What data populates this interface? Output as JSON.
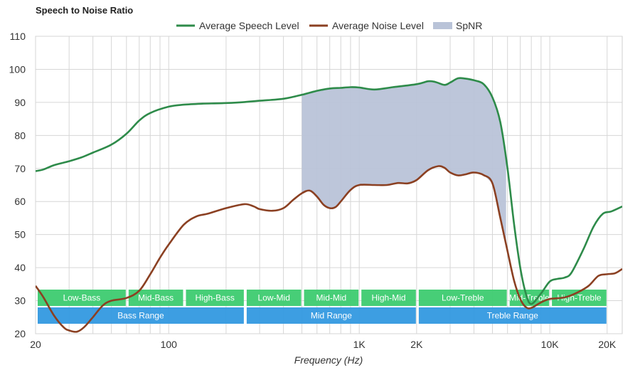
{
  "chart_data": {
    "type": "line",
    "title": "Speech to Noise Ratio",
    "xlabel": "Frequency (Hz)",
    "ylabel": "",
    "xscale": "log",
    "xlim": [
      20,
      24000
    ],
    "ylim": [
      20,
      110
    ],
    "yticks": [
      20,
      30,
      40,
      50,
      60,
      70,
      80,
      90,
      100,
      110
    ],
    "xticks": [
      {
        "value": 20,
        "label": "20"
      },
      {
        "value": 100,
        "label": "100"
      },
      {
        "value": 1000,
        "label": "1K"
      },
      {
        "value": 2000,
        "label": "2K"
      },
      {
        "value": 10000,
        "label": "10K"
      },
      {
        "value": 20000,
        "label": "20K"
      }
    ],
    "grid": true,
    "legend_position": "top-center",
    "series": [
      {
        "name": "Average Speech Level",
        "color": "#2e8b4a",
        "points": [
          [
            20,
            69.2
          ],
          [
            22,
            69.7
          ],
          [
            25,
            71
          ],
          [
            30,
            72.2
          ],
          [
            35,
            73.4
          ],
          [
            40,
            74.8
          ],
          [
            50,
            77.2
          ],
          [
            60,
            80.5
          ],
          [
            70,
            84.5
          ],
          [
            80,
            86.8
          ],
          [
            100,
            88.7
          ],
          [
            120,
            89.3
          ],
          [
            150,
            89.6
          ],
          [
            200,
            89.8
          ],
          [
            250,
            90.1
          ],
          [
            300,
            90.5
          ],
          [
            400,
            91.1
          ],
          [
            500,
            92.3
          ],
          [
            600,
            93.5
          ],
          [
            700,
            94.2
          ],
          [
            800,
            94.4
          ],
          [
            900,
            94.6
          ],
          [
            1000,
            94.5
          ],
          [
            1200,
            93.9
          ],
          [
            1500,
            94.6
          ],
          [
            2000,
            95.5
          ],
          [
            2300,
            96.4
          ],
          [
            2500,
            96.2
          ],
          [
            2800,
            95.3
          ],
          [
            3000,
            96
          ],
          [
            3300,
            97.3
          ],
          [
            3600,
            97.2
          ],
          [
            4000,
            96.7
          ],
          [
            4500,
            95.5
          ],
          [
            5000,
            91.5
          ],
          [
            5500,
            84
          ],
          [
            6000,
            70
          ],
          [
            6500,
            53
          ],
          [
            7000,
            40
          ],
          [
            7500,
            32
          ],
          [
            8000,
            29
          ],
          [
            9000,
            32.2
          ],
          [
            10000,
            35.8
          ],
          [
            11000,
            36.6
          ],
          [
            12000,
            37
          ],
          [
            13000,
            38.5
          ],
          [
            15000,
            45.5
          ],
          [
            17000,
            52.5
          ],
          [
            19000,
            56.3
          ],
          [
            21000,
            57
          ],
          [
            24000,
            58.5
          ]
        ]
      },
      {
        "name": "Average Noise Level",
        "color": "#8b4022",
        "points": [
          [
            20,
            34.5
          ],
          [
            22,
            31
          ],
          [
            25,
            25.5
          ],
          [
            28,
            22
          ],
          [
            30,
            21
          ],
          [
            33,
            20.6
          ],
          [
            36,
            22
          ],
          [
            40,
            25
          ],
          [
            45,
            28.5
          ],
          [
            50,
            30
          ],
          [
            60,
            30.8
          ],
          [
            70,
            33
          ],
          [
            80,
            38
          ],
          [
            90,
            43
          ],
          [
            100,
            47
          ],
          [
            120,
            53
          ],
          [
            140,
            55.5
          ],
          [
            160,
            56.3
          ],
          [
            200,
            58
          ],
          [
            250,
            59.2
          ],
          [
            280,
            58.5
          ],
          [
            300,
            57.7
          ],
          [
            350,
            57.2
          ],
          [
            400,
            58
          ],
          [
            450,
            60.5
          ],
          [
            500,
            62.5
          ],
          [
            550,
            63.3
          ],
          [
            600,
            61.5
          ],
          [
            650,
            59
          ],
          [
            700,
            58
          ],
          [
            750,
            58.3
          ],
          [
            800,
            60
          ],
          [
            900,
            63.5
          ],
          [
            1000,
            65
          ],
          [
            1200,
            65
          ],
          [
            1400,
            65
          ],
          [
            1600,
            65.6
          ],
          [
            1800,
            65.5
          ],
          [
            2000,
            66.5
          ],
          [
            2300,
            69.5
          ],
          [
            2600,
            70.7
          ],
          [
            2800,
            70.2
          ],
          [
            3000,
            68.8
          ],
          [
            3300,
            67.9
          ],
          [
            3600,
            68.2
          ],
          [
            4000,
            68.8
          ],
          [
            4500,
            68
          ],
          [
            5000,
            65.5
          ],
          [
            5500,
            55
          ],
          [
            6000,
            45
          ],
          [
            6500,
            36
          ],
          [
            7000,
            30.5
          ],
          [
            7500,
            28
          ],
          [
            8000,
            27.8
          ],
          [
            9000,
            29.5
          ],
          [
            10000,
            30.5
          ],
          [
            12000,
            31
          ],
          [
            14000,
            32.5
          ],
          [
            16000,
            34.5
          ],
          [
            18000,
            37.5
          ],
          [
            20000,
            38
          ],
          [
            22000,
            38.3
          ],
          [
            24000,
            39.6
          ]
        ]
      }
    ],
    "spnr": {
      "name": "SpNR",
      "color": "#b9c3d8",
      "range": [
        500,
        5900
      ]
    },
    "bands_top": [
      {
        "label": "Low-Bass",
        "from": 20,
        "to": 60
      },
      {
        "label": "Mid-Bass",
        "from": 60,
        "to": 120
      },
      {
        "label": "High-Bass",
        "from": 120,
        "to": 250
      },
      {
        "label": "Low-Mid",
        "from": 250,
        "to": 500
      },
      {
        "label": "Mid-Mid",
        "from": 500,
        "to": 1000
      },
      {
        "label": "High-Mid",
        "from": 1000,
        "to": 2000
      },
      {
        "label": "Low-Treble",
        "from": 2000,
        "to": 6000
      },
      {
        "label": "Mid-Treble",
        "from": 6000,
        "to": 10000
      },
      {
        "label": "High-Treble",
        "from": 10000,
        "to": 20000
      }
    ],
    "bands_bottom": [
      {
        "label": "Bass Range",
        "from": 20,
        "to": 250
      },
      {
        "label": "Mid Range",
        "from": 250,
        "to": 2000
      },
      {
        "label": "Treble Range",
        "from": 2000,
        "to": 20000
      }
    ],
    "band_colors": {
      "top": "#3dcb70",
      "bottom": "#3399e0"
    }
  }
}
